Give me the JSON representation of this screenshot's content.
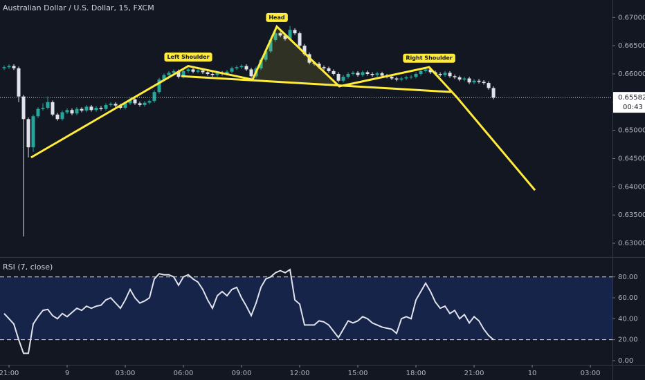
{
  "chart_data": [
    {
      "type": "candlestick",
      "title": "Australian Dollar / U.S. Dollar, 15, FXCM",
      "up_color": "#26a69a",
      "down_color": "#e0e3eb",
      "xlim": [
        -0.464,
        31.14
      ],
      "ylim": [
        0.6278,
        0.6731
      ],
      "yticks": [
        {
          "value": 0.63,
          "label": "0.63000"
        },
        {
          "value": 0.635,
          "label": "0.63500"
        },
        {
          "value": 0.64,
          "label": "0.64000"
        },
        {
          "value": 0.645,
          "label": "0.64500"
        },
        {
          "value": 0.65,
          "label": "0.65000"
        },
        {
          "value": 0.655,
          "label": "0.65500"
        },
        {
          "value": 0.66,
          "label": "0.66000"
        },
        {
          "value": 0.665,
          "label": "0.66500"
        },
        {
          "value": 0.67,
          "label": "0.67000"
        }
      ],
      "x": [
        -0.25,
        0,
        0.25,
        0.5,
        0.75,
        1,
        1.25,
        1.5,
        1.75,
        2,
        2.25,
        2.5,
        2.75,
        3,
        3.25,
        3.5,
        3.75,
        4,
        4.25,
        4.5,
        4.75,
        5,
        5.25,
        5.5,
        5.75,
        6,
        6.25,
        6.5,
        6.75,
        7,
        7.25,
        7.5,
        7.75,
        8,
        8.25,
        8.5,
        8.75,
        9,
        9.25,
        9.5,
        9.75,
        10,
        10.25,
        10.5,
        10.75,
        11,
        11.25,
        11.5,
        11.75,
        12,
        12.25,
        12.5,
        12.75,
        13,
        13.25,
        13.5,
        13.75,
        14,
        14.25,
        14.5,
        14.75,
        15,
        15.25,
        15.5,
        15.75,
        16,
        16.25,
        16.5,
        16.75,
        17,
        17.25,
        17.5,
        17.75,
        18,
        18.25,
        18.5,
        18.75,
        19,
        19.25,
        19.5,
        19.75,
        20,
        20.25,
        20.5,
        20.75,
        21,
        21.25,
        21.5,
        21.75,
        22,
        22.25,
        22.5,
        22.75,
        23,
        23.25,
        23.5,
        23.75,
        24,
        24.25,
        24.5,
        24.75,
        25
      ],
      "open": [
        0.661,
        0.6612,
        0.6614,
        0.661,
        0.656,
        0.652,
        0.647,
        0.6525,
        0.6538,
        0.654,
        0.655,
        0.6528,
        0.652,
        0.6532,
        0.6536,
        0.653,
        0.6538,
        0.6535,
        0.6542,
        0.6536,
        0.654,
        0.6538,
        0.6545,
        0.6547,
        0.6544,
        0.654,
        0.6548,
        0.6555,
        0.6548,
        0.6545,
        0.6549,
        0.6552,
        0.6568,
        0.659,
        0.6598,
        0.6602,
        0.6605,
        0.6595,
        0.6605,
        0.6608,
        0.6604,
        0.6606,
        0.6603,
        0.66,
        0.6598,
        0.6602,
        0.66,
        0.6604,
        0.661,
        0.6612,
        0.6614,
        0.6608,
        0.6596,
        0.661,
        0.6625,
        0.664,
        0.666,
        0.6672,
        0.6668,
        0.6662,
        0.6678,
        0.6672,
        0.665,
        0.6635,
        0.662,
        0.6618,
        0.6612,
        0.661,
        0.6605,
        0.66,
        0.6588,
        0.6595,
        0.66,
        0.6602,
        0.6598,
        0.6603,
        0.66,
        0.6598,
        0.6601,
        0.6597,
        0.6595,
        0.6592,
        0.659,
        0.6592,
        0.6594,
        0.6595,
        0.66,
        0.6605,
        0.6608,
        0.6603,
        0.66,
        0.6598,
        0.6602,
        0.6596,
        0.6594,
        0.659,
        0.6592,
        0.6585,
        0.6588,
        0.6586,
        0.6584,
        0.6575
      ],
      "high": [
        0.6615,
        0.6617,
        0.6617,
        0.6613,
        0.6563,
        0.6523,
        0.6528,
        0.6541,
        0.6548,
        0.656,
        0.6553,
        0.6531,
        0.6535,
        0.6539,
        0.6539,
        0.6541,
        0.6541,
        0.6545,
        0.6545,
        0.6543,
        0.6543,
        0.6548,
        0.655,
        0.655,
        0.6547,
        0.6551,
        0.6558,
        0.6558,
        0.6551,
        0.6552,
        0.6555,
        0.6571,
        0.6593,
        0.6601,
        0.6605,
        0.6608,
        0.6608,
        0.6608,
        0.6611,
        0.6611,
        0.6609,
        0.6609,
        0.6606,
        0.6603,
        0.6605,
        0.6605,
        0.6607,
        0.6613,
        0.6615,
        0.6617,
        0.6617,
        0.6611,
        0.6613,
        0.6628,
        0.6643,
        0.6663,
        0.6682,
        0.6675,
        0.6671,
        0.6685,
        0.6681,
        0.6675,
        0.6653,
        0.6638,
        0.6623,
        0.6621,
        0.6615,
        0.6613,
        0.6608,
        0.6603,
        0.6598,
        0.6603,
        0.6605,
        0.6605,
        0.6606,
        0.6606,
        0.6603,
        0.6604,
        0.6604,
        0.66,
        0.6598,
        0.6595,
        0.6595,
        0.6597,
        0.6598,
        0.6603,
        0.6608,
        0.6611,
        0.6611,
        0.6606,
        0.6603,
        0.6605,
        0.6605,
        0.6599,
        0.6597,
        0.6595,
        0.6595,
        0.6591,
        0.6591,
        0.6589,
        0.6587,
        0.6578
      ],
      "low": [
        0.6607,
        0.6609,
        0.6607,
        0.655,
        0.6312,
        0.6452,
        0.6462,
        0.6522,
        0.6535,
        0.6537,
        0.6525,
        0.6517,
        0.6517,
        0.6529,
        0.6527,
        0.6527,
        0.6532,
        0.6532,
        0.6533,
        0.6533,
        0.6535,
        0.6535,
        0.6542,
        0.6541,
        0.6537,
        0.6537,
        0.6545,
        0.6545,
        0.6542,
        0.6542,
        0.6546,
        0.6549,
        0.6565,
        0.6587,
        0.6595,
        0.6599,
        0.6592,
        0.6592,
        0.6602,
        0.6601,
        0.6601,
        0.66,
        0.6597,
        0.6595,
        0.6595,
        0.6597,
        0.6597,
        0.6601,
        0.6607,
        0.6609,
        0.6605,
        0.6593,
        0.6593,
        0.6607,
        0.6622,
        0.6637,
        0.6657,
        0.6665,
        0.6659,
        0.6659,
        0.6669,
        0.6647,
        0.6632,
        0.6617,
        0.6615,
        0.6609,
        0.6607,
        0.6602,
        0.6597,
        0.6585,
        0.6585,
        0.6592,
        0.6597,
        0.6595,
        0.6595,
        0.6597,
        0.6595,
        0.6595,
        0.6594,
        0.6592,
        0.6589,
        0.6587,
        0.6587,
        0.6589,
        0.6591,
        0.6592,
        0.6597,
        0.6602,
        0.66,
        0.6597,
        0.6595,
        0.6595,
        0.6593,
        0.6591,
        0.6587,
        0.6587,
        0.6582,
        0.6582,
        0.6583,
        0.6581,
        0.6572,
        0.6555
      ],
      "close": [
        0.6612,
        0.6614,
        0.661,
        0.656,
        0.652,
        0.647,
        0.6525,
        0.6538,
        0.654,
        0.655,
        0.6528,
        0.652,
        0.6532,
        0.6536,
        0.653,
        0.6538,
        0.6535,
        0.6542,
        0.6536,
        0.654,
        0.6538,
        0.6545,
        0.6547,
        0.6544,
        0.654,
        0.6548,
        0.6555,
        0.6548,
        0.6545,
        0.6549,
        0.6552,
        0.6568,
        0.659,
        0.6598,
        0.6602,
        0.6605,
        0.6595,
        0.6605,
        0.6608,
        0.6604,
        0.6606,
        0.6603,
        0.66,
        0.6598,
        0.6602,
        0.66,
        0.6604,
        0.661,
        0.6612,
        0.6614,
        0.6608,
        0.6596,
        0.661,
        0.6625,
        0.664,
        0.666,
        0.6672,
        0.6668,
        0.6662,
        0.6678,
        0.6672,
        0.665,
        0.6635,
        0.662,
        0.6618,
        0.6612,
        0.661,
        0.6605,
        0.66,
        0.6588,
        0.6595,
        0.66,
        0.6602,
        0.6598,
        0.6603,
        0.66,
        0.6598,
        0.6601,
        0.6597,
        0.6595,
        0.6592,
        0.659,
        0.6592,
        0.6594,
        0.6595,
        0.66,
        0.6605,
        0.6608,
        0.6603,
        0.66,
        0.6598,
        0.6602,
        0.6596,
        0.6594,
        0.659,
        0.6592,
        0.6585,
        0.6588,
        0.6586,
        0.6584,
        0.6575,
        0.6558
      ],
      "last_price": {
        "value": 0.65582,
        "label": "0.65582"
      },
      "countdown": "00:43",
      "pattern_color": "#ffeb3b",
      "pattern": {
        "x": [
          1.14,
          9.25,
          12.57,
          13.82,
          17.04,
          21.68,
          23.1,
          27.14
        ],
        "y": [
          0.6452,
          0.6614,
          0.659,
          0.6684,
          0.6578,
          0.6612,
          0.6559,
          0.6394
        ]
      },
      "neckline": {
        "x": [
          8.89,
          22.82
        ],
        "y": [
          0.6596,
          0.6568
        ]
      },
      "annotations": [
        "Head",
        "Left Shoulder",
        "Right Shoulder"
      ]
    },
    {
      "type": "line",
      "title": "RSI (7, close)",
      "color": "#e0e3eb",
      "band": [
        20,
        80
      ],
      "band_color": "#2962ff",
      "xlim": [
        -0.464,
        31.14
      ],
      "ylim": [
        -4,
        97
      ],
      "yticks": [
        {
          "value": 0,
          "label": "0.00"
        },
        {
          "value": 20,
          "label": "20.00"
        },
        {
          "value": 40,
          "label": "40.00"
        },
        {
          "value": 60,
          "label": "60.00"
        },
        {
          "value": 80,
          "label": "80.00"
        }
      ],
      "xticks": [
        {
          "value": 0,
          "label": "21:00"
        },
        {
          "value": 3,
          "label": "9"
        },
        {
          "value": 6,
          "label": "03:00"
        },
        {
          "value": 9,
          "label": "06:00"
        },
        {
          "value": 12,
          "label": "09:00"
        },
        {
          "value": 15,
          "label": "12:00"
        },
        {
          "value": 18,
          "label": "15:00"
        },
        {
          "value": 21,
          "label": "18:00"
        },
        {
          "value": 24,
          "label": "21:00"
        },
        {
          "value": 27,
          "label": "10"
        },
        {
          "value": 30,
          "label": "03:00"
        }
      ],
      "x": [
        -0.25,
        0,
        0.25,
        0.5,
        0.75,
        1,
        1.25,
        1.5,
        1.75,
        2,
        2.25,
        2.5,
        2.75,
        3,
        3.25,
        3.5,
        3.75,
        4,
        4.25,
        4.5,
        4.75,
        5,
        5.25,
        5.5,
        5.75,
        6,
        6.25,
        6.5,
        6.75,
        7,
        7.25,
        7.5,
        7.75,
        8,
        8.25,
        8.5,
        8.75,
        9,
        9.25,
        9.5,
        9.75,
        10,
        10.25,
        10.5,
        10.75,
        11,
        11.25,
        11.5,
        11.75,
        12,
        12.25,
        12.5,
        12.75,
        13,
        13.25,
        13.5,
        13.75,
        14,
        14.25,
        14.5,
        14.75,
        15,
        15.25,
        15.5,
        15.75,
        16,
        16.25,
        16.5,
        16.75,
        17,
        17.25,
        17.5,
        17.75,
        18,
        18.25,
        18.5,
        18.75,
        19,
        19.25,
        19.5,
        19.75,
        20,
        20.25,
        20.5,
        20.75,
        21,
        21.25,
        21.5,
        21.75,
        22,
        22.25,
        22.5,
        22.75,
        23,
        23.25,
        23.5,
        23.75,
        24,
        24.25,
        24.5,
        24.75,
        25
      ],
      "values": [
        45,
        40,
        35,
        20,
        7,
        7,
        35,
        42,
        48,
        49,
        43,
        40,
        45,
        42,
        46,
        50,
        48,
        52,
        50,
        52,
        53,
        58,
        60,
        55,
        50,
        58,
        68,
        60,
        55,
        57,
        60,
        78,
        83,
        82,
        82,
        80,
        72,
        80,
        82,
        78,
        75,
        68,
        58,
        50,
        62,
        66,
        62,
        68,
        70,
        60,
        52,
        43,
        55,
        70,
        78,
        80,
        84,
        86,
        84,
        87,
        58,
        54,
        34,
        34,
        34,
        38,
        37,
        34,
        28,
        22,
        30,
        38,
        36,
        38,
        42,
        40,
        36,
        34,
        32,
        31,
        30,
        26,
        40,
        42,
        40,
        58,
        66,
        74,
        66,
        56,
        50,
        52,
        45,
        48,
        40,
        44,
        36,
        42,
        38,
        30,
        24,
        20
      ]
    }
  ]
}
